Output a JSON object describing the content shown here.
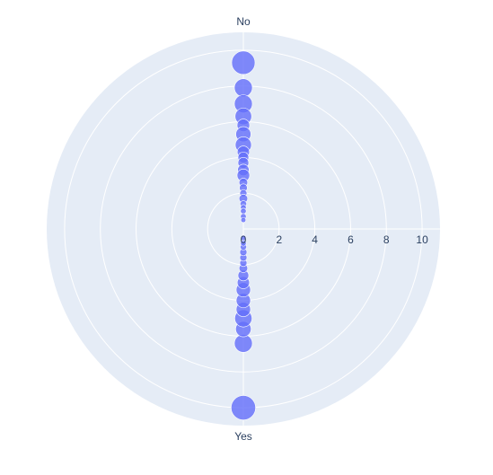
{
  "chart_data": {
    "type": "scatter",
    "subtype": "polar-bubble",
    "angular_axis": {
      "categories": [
        "No",
        "Yes"
      ],
      "directions_deg": [
        90,
        270
      ]
    },
    "radial_axis": {
      "range": [
        0,
        11
      ],
      "tickvals": [
        0,
        2,
        4,
        6,
        8,
        10
      ],
      "ticklabels": [
        "0",
        "2",
        "4",
        "6",
        "8",
        "10"
      ]
    },
    "grid": true,
    "background_color": "#e5ecf6",
    "marker_color": "#636efa",
    "series": [
      {
        "points": [
          {
            "theta": "No",
            "r": 9.3,
            "size": 6.5
          },
          {
            "theta": "No",
            "r": 7.9,
            "size": 5.0
          },
          {
            "theta": "No",
            "r": 7.0,
            "size": 5.0
          },
          {
            "theta": "No",
            "r": 6.3,
            "size": 4.6
          },
          {
            "theta": "No",
            "r": 5.8,
            "size": 3.5
          },
          {
            "theta": "No",
            "r": 5.3,
            "size": 4.2
          },
          {
            "theta": "No",
            "r": 4.7,
            "size": 4.5
          },
          {
            "theta": "No",
            "r": 4.3,
            "size": 3.4
          },
          {
            "theta": "No",
            "r": 4.0,
            "size": 3.0
          },
          {
            "theta": "No",
            "r": 3.7,
            "size": 3.0
          },
          {
            "theta": "No",
            "r": 3.3,
            "size": 3.2
          },
          {
            "theta": "No",
            "r": 3.0,
            "size": 3.5
          },
          {
            "theta": "No",
            "r": 2.6,
            "size": 2.4
          },
          {
            "theta": "No",
            "r": 2.3,
            "size": 2.2
          },
          {
            "theta": "No",
            "r": 2.0,
            "size": 2.0
          },
          {
            "theta": "No",
            "r": 1.7,
            "size": 2.4
          },
          {
            "theta": "No",
            "r": 1.4,
            "size": 1.8
          },
          {
            "theta": "No",
            "r": 1.2,
            "size": 1.6
          },
          {
            "theta": "No",
            "r": 1.0,
            "size": 1.6
          },
          {
            "theta": "No",
            "r": 0.7,
            "size": 1.6
          },
          {
            "theta": "No",
            "r": 0.5,
            "size": 1.4
          },
          {
            "theta": "Yes",
            "r": 10.0,
            "size": 6.8
          },
          {
            "theta": "Yes",
            "r": 6.4,
            "size": 5.0
          },
          {
            "theta": "Yes",
            "r": 5.6,
            "size": 4.3
          },
          {
            "theta": "Yes",
            "r": 5.0,
            "size": 4.8
          },
          {
            "theta": "Yes",
            "r": 4.5,
            "size": 4.0
          },
          {
            "theta": "Yes",
            "r": 4.0,
            "size": 4.0
          },
          {
            "theta": "Yes",
            "r": 3.4,
            "size": 4.0
          },
          {
            "theta": "Yes",
            "r": 3.0,
            "size": 3.4
          },
          {
            "theta": "Yes",
            "r": 2.6,
            "size": 3.0
          },
          {
            "theta": "Yes",
            "r": 2.2,
            "size": 2.4
          },
          {
            "theta": "Yes",
            "r": 1.9,
            "size": 2.0
          },
          {
            "theta": "Yes",
            "r": 1.6,
            "size": 2.0
          },
          {
            "theta": "Yes",
            "r": 1.3,
            "size": 2.0
          },
          {
            "theta": "Yes",
            "r": 1.0,
            "size": 1.8
          },
          {
            "theta": "Yes",
            "r": 0.8,
            "size": 1.6
          },
          {
            "theta": "Yes",
            "r": 0.5,
            "size": 1.5
          }
        ]
      }
    ]
  }
}
